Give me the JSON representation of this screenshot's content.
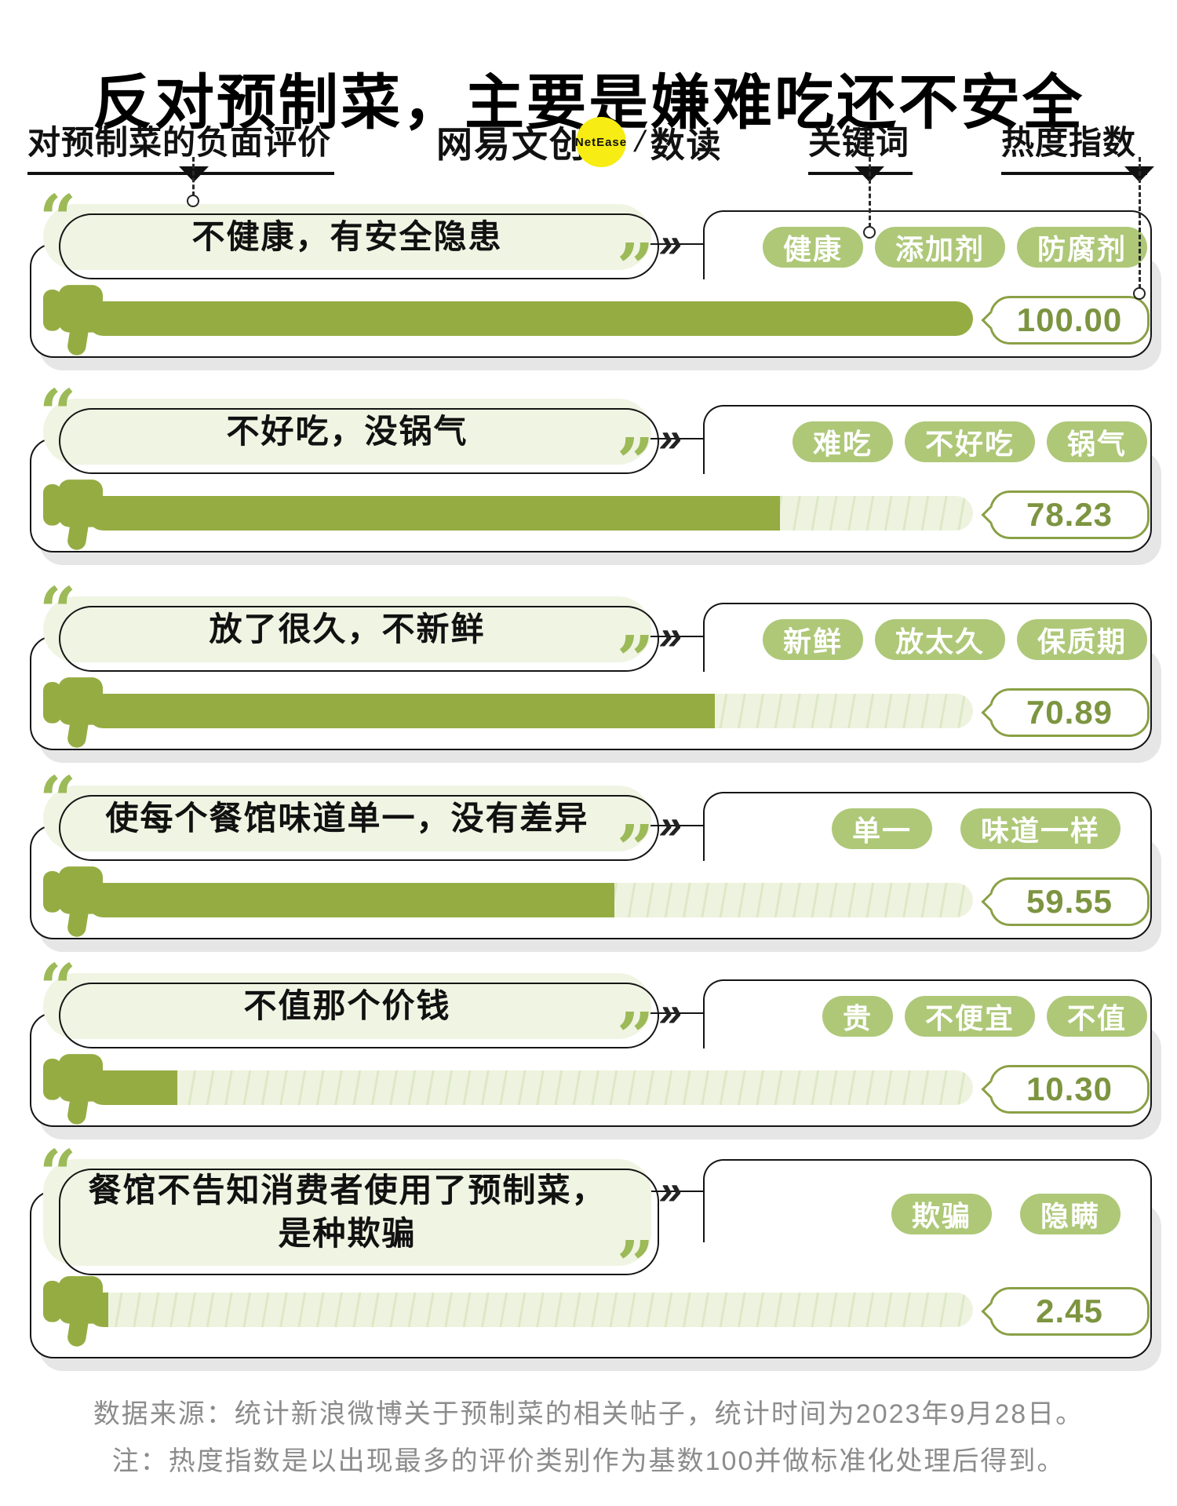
{
  "title": "反对预制菜，主要是嫌难吃还不安全",
  "header": {
    "left_label": "对预制菜的负面评价",
    "keyword_label": "关键词",
    "heat_label": "热度指数",
    "logo": {
      "brand": "网易文创",
      "netease": "NetEase",
      "separator": "/",
      "product": "数读"
    }
  },
  "icons": {
    "open_quote": "“",
    "close_quote": "”",
    "chevron": "»"
  },
  "rows": [
    {
      "quote": "不健康，有安全隐患",
      "keywords": [
        "健康",
        "添加剂",
        "防腐剂"
      ],
      "value": 100,
      "value_label": "100.00"
    },
    {
      "quote": "不好吃，没锅气",
      "keywords": [
        "难吃",
        "不好吃",
        "锅气"
      ],
      "value": 78.23,
      "value_label": "78.23"
    },
    {
      "quote": "放了很久，不新鲜",
      "keywords": [
        "新鲜",
        "放太久",
        "保质期"
      ],
      "value": 70.89,
      "value_label": "70.89"
    },
    {
      "quote": "使每个餐馆味道单一，没有差异",
      "keywords": [
        "单一",
        "味道一样"
      ],
      "value": 59.55,
      "value_label": "59.55"
    },
    {
      "quote": "不值那个价钱",
      "keywords": [
        "贵",
        "不便宜",
        "不值"
      ],
      "value": 10.3,
      "value_label": "10.30"
    },
    {
      "quote": "餐馆不告知消费者使用了预制菜，",
      "quote_line2": "是种欺骗",
      "keywords": [
        "欺骗",
        "隐瞒"
      ],
      "value": 2.45,
      "value_label": "2.45"
    }
  ],
  "footer": {
    "source": "数据来源：统计新浪微博关于预制菜的相关帖子，统计时间为2023年9月28日。",
    "note": "注：热度指数是以出现最多的评价类别作为基数100并做标准化处理后得到。"
  },
  "colors": {
    "bar-green": "#95ac43",
    "pill-green": "#aec878",
    "quote-green": "#9cba57",
    "score-green": "#7d9440",
    "score-border": "#8aa045",
    "bubble-bg": "#f0f4e3",
    "track-bg": "#eef3df",
    "track-hatch": "#dde8c6",
    "footer-gray": "#8c8c8c",
    "logo-yellow": "#f7ec13",
    "shadow-gray": "#e6e6e6"
  },
  "chart_data": {
    "type": "bar",
    "orientation": "horizontal",
    "title": "反对预制菜，主要是嫌难吃还不安全",
    "xlabel": "对预制菜的负面评价",
    "ylabel": "热度指数",
    "value_range": [
      0,
      100
    ],
    "categories": [
      "不健康，有安全隐患",
      "不好吃，没锅气",
      "放了很久，不新鲜",
      "使每个餐馆味道单一，没有差异",
      "不值那个价钱",
      "餐馆不告知消费者使用了预制菜，是种欺骗"
    ],
    "values": [
      100.0,
      78.23,
      70.89,
      59.55,
      10.3,
      2.45
    ],
    "keywords": [
      [
        "健康",
        "添加剂",
        "防腐剂"
      ],
      [
        "难吃",
        "不好吃",
        "锅气"
      ],
      [
        "新鲜",
        "放太久",
        "保质期"
      ],
      [
        "单一",
        "味道一样"
      ],
      [
        "贵",
        "不便宜",
        "不值"
      ],
      [
        "欺骗",
        "隐瞒"
      ]
    ]
  }
}
